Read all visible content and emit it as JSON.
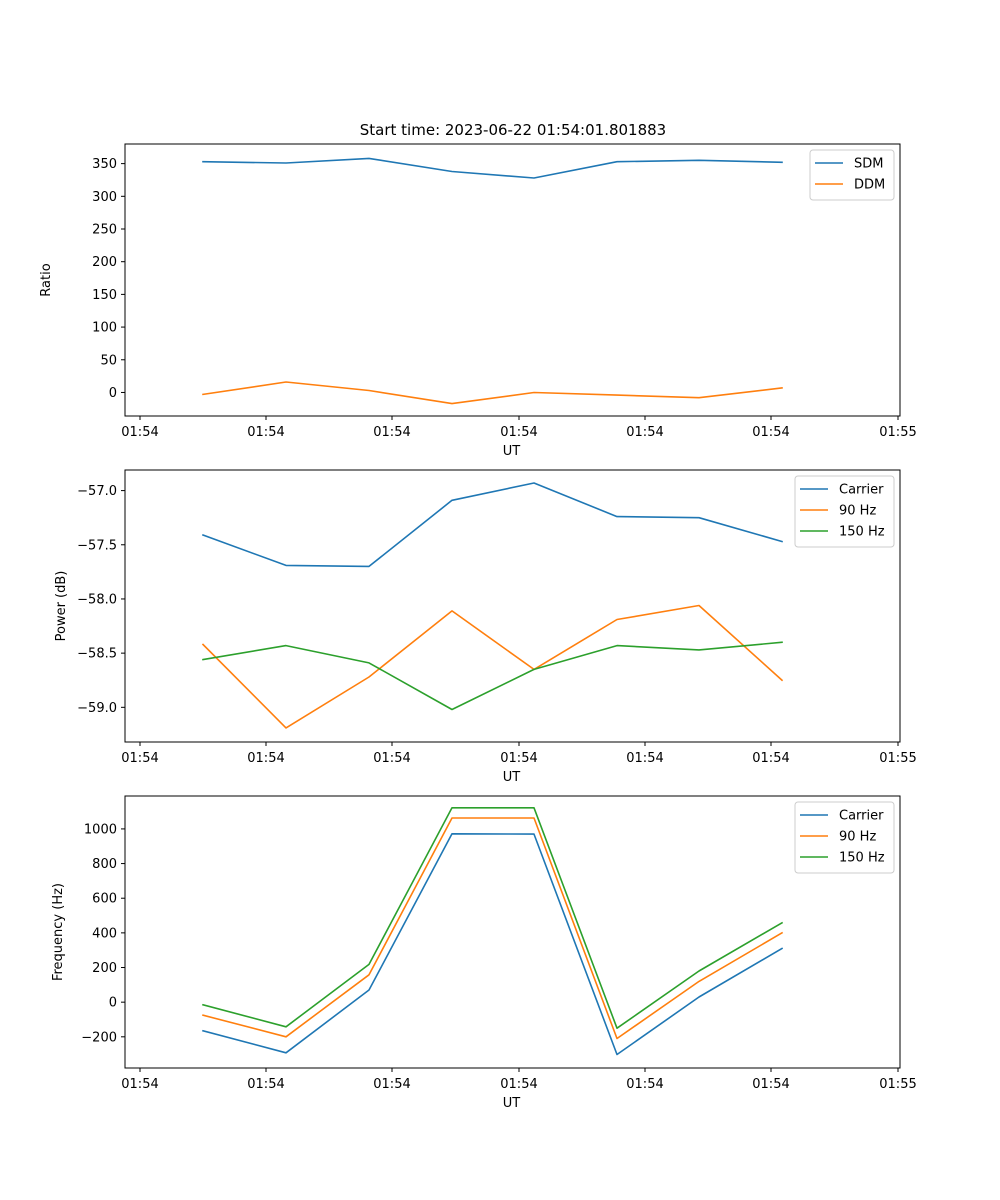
{
  "figure": {
    "suptitle": "Start time: 2023-06-22 01:54:01.801883"
  },
  "chart_data": [
    {
      "type": "line",
      "title": "Start time: 2023-06-22 01:54:01.801883",
      "xlabel": "UT",
      "ylabel": "Ratio",
      "x_tick_labels": [
        "01:54",
        "01:54",
        "01:54",
        "01:54",
        "01:54",
        "01:54",
        "01:54"
      ],
      "x_tick_labels_full": [
        "01:54",
        "01:54",
        "01:54",
        "01:54",
        "01:54",
        "01:54",
        "01:55"
      ],
      "y_ticks": [
        0,
        50,
        100,
        150,
        200,
        250,
        300,
        350
      ],
      "ylim": [
        -36,
        380
      ],
      "legend_position": "top-right",
      "series": [
        {
          "name": "SDM",
          "color": "#1f77b4",
          "values": [
            353,
            351,
            358,
            338,
            328,
            353,
            355,
            352
          ]
        },
        {
          "name": "DDM",
          "color": "#ff7f0e",
          "values": [
            -3,
            16,
            3,
            -17,
            0,
            -4,
            -8,
            7
          ]
        }
      ]
    },
    {
      "type": "line",
      "title": "",
      "xlabel": "UT",
      "ylabel": "Power (dB)",
      "x_tick_labels_full": [
        "01:54",
        "01:54",
        "01:54",
        "01:54",
        "01:54",
        "01:54",
        "01:55"
      ],
      "y_ticks": [
        -57.0,
        -57.5,
        -58.0,
        -58.5,
        -59.0
      ],
      "y_tick_labels": [
        "−57.0",
        "−57.5",
        "−58.0",
        "−58.5",
        "−59.0"
      ],
      "ylim": [
        -59.32,
        -56.81
      ],
      "legend_position": "top-right",
      "series": [
        {
          "name": "Carrier",
          "color": "#1f77b4",
          "values": [
            -57.41,
            -57.69,
            -57.7,
            -57.09,
            -56.93,
            -57.24,
            -57.25,
            -57.47
          ]
        },
        {
          "name": "90 Hz",
          "color": "#ff7f0e",
          "values": [
            -58.42,
            -59.19,
            -58.72,
            -58.11,
            -58.65,
            -58.19,
            -58.06,
            -58.75
          ]
        },
        {
          "name": "150 Hz",
          "color": "#2ca02c",
          "values": [
            -58.56,
            -58.43,
            -58.59,
            -59.02,
            -58.65,
            -58.43,
            -58.47,
            -58.4
          ]
        }
      ]
    },
    {
      "type": "line",
      "title": "",
      "xlabel": "UT",
      "ylabel": "Frequency (Hz)",
      "x_tick_labels_full": [
        "01:54",
        "01:54",
        "01:54",
        "01:54",
        "01:54",
        "01:54",
        "01:55"
      ],
      "y_ticks": [
        -200,
        0,
        200,
        400,
        600,
        800,
        1000
      ],
      "y_tick_labels": [
        "−200",
        "0",
        "200",
        "400",
        "600",
        "800",
        "1000"
      ],
      "ylim": [
        -380,
        1190
      ],
      "legend_position": "top-right",
      "series": [
        {
          "name": "Carrier",
          "color": "#1f77b4",
          "values": [
            -165,
            -292,
            70,
            972,
            970,
            -302,
            30,
            310
          ]
        },
        {
          "name": "90 Hz",
          "color": "#ff7f0e",
          "values": [
            -75,
            -200,
            158,
            1063,
            1063,
            -210,
            120,
            400
          ]
        },
        {
          "name": "150 Hz",
          "color": "#2ca02c",
          "values": [
            -15,
            -142,
            218,
            1122,
            1122,
            -150,
            180,
            458
          ]
        }
      ]
    }
  ]
}
